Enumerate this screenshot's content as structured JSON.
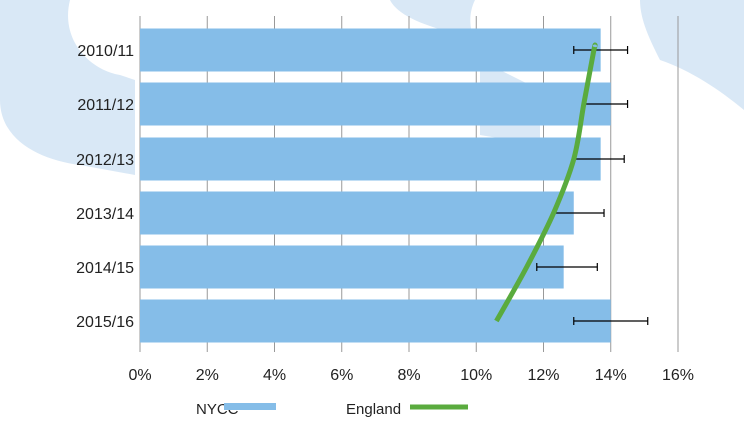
{
  "chart_data": {
    "type": "bar",
    "orientation": "horizontal",
    "categories": [
      "2010/11",
      "2011/12",
      "2012/13",
      "2013/14",
      "2014/15",
      "2015/16"
    ],
    "series": [
      {
        "name": "NYCC",
        "values": [
          13.7,
          14.0,
          13.7,
          12.9,
          12.6,
          14.0
        ],
        "error_low": [
          12.9,
          13.2,
          12.9,
          12.3,
          11.8,
          12.9
        ],
        "error_high": [
          14.5,
          14.5,
          14.4,
          13.8,
          13.6,
          15.1
        ],
        "color": "#85bde8"
      },
      {
        "name": "England",
        "type": "line",
        "values": [
          13.5,
          13.2,
          12.9,
          12.3,
          11.5,
          10.6
        ],
        "color": "#5aab3e"
      }
    ],
    "xlim": [
      0,
      16
    ],
    "xticks": [
      0,
      2,
      4,
      6,
      8,
      10,
      12,
      14,
      16
    ],
    "xtick_labels": [
      "0%",
      "2%",
      "4%",
      "6%",
      "8%",
      "10%",
      "12%",
      "14%",
      "16%"
    ],
    "grid": "vertical",
    "legend": "bottom",
    "title": "",
    "xlabel": "",
    "ylabel": ""
  },
  "colors": {
    "background_cloud": "#d9e8f6",
    "gridline": "#999999",
    "error_bar": "#000000"
  }
}
